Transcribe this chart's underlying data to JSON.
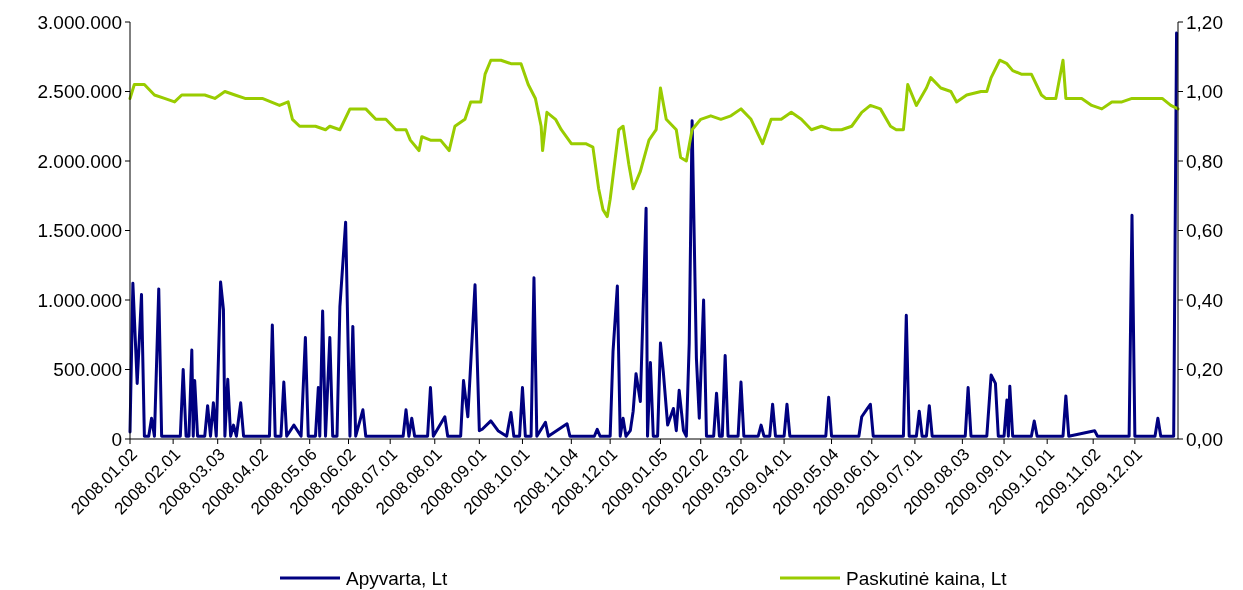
{
  "chart_data": {
    "type": "line",
    "legend": "bottom",
    "grid": false,
    "marker": "none",
    "line_style": "solid",
    "xlim": [
      "2008-01-02",
      "2009-12-31"
    ],
    "xticks": [
      {
        "value": "2008-01-02",
        "label": "2008.01.02"
      },
      {
        "value": "2008-02-01",
        "label": "2008.02.01"
      },
      {
        "value": "2008-03-03",
        "label": "2008.03.03"
      },
      {
        "value": "2008-04-02",
        "label": "2008.04.02"
      },
      {
        "value": "2008-05-06",
        "label": "2008.05.06"
      },
      {
        "value": "2008-06-02",
        "label": "2008.06.02"
      },
      {
        "value": "2008-07-01",
        "label": "2008.07.01"
      },
      {
        "value": "2008-08-01",
        "label": "2008.08.01"
      },
      {
        "value": "2008-09-01",
        "label": "2008.09.01"
      },
      {
        "value": "2008-10-01",
        "label": "2008.10.01"
      },
      {
        "value": "2008-11-04",
        "label": "2008.11.04"
      },
      {
        "value": "2008-12-01",
        "label": "2008.12.01"
      },
      {
        "value": "2009-01-05",
        "label": "2009.01.05"
      },
      {
        "value": "2009-02-02",
        "label": "2009.02.02"
      },
      {
        "value": "2009-03-02",
        "label": "2009.03.02"
      },
      {
        "value": "2009-04-01",
        "label": "2009.04.01"
      },
      {
        "value": "2009-05-04",
        "label": "2009.05.04"
      },
      {
        "value": "2009-06-01",
        "label": "2009.06.01"
      },
      {
        "value": "2009-07-01",
        "label": "2009.07.01"
      },
      {
        "value": "2009-08-03",
        "label": "2009.08.03"
      },
      {
        "value": "2009-09-01",
        "label": "2009.09.01"
      },
      {
        "value": "2009-10-01",
        "label": "2009.10.01"
      },
      {
        "value": "2009-11-02",
        "label": "2009.11.02"
      },
      {
        "value": "2009-12-01",
        "label": "2009.12.01"
      }
    ],
    "ylim": [
      0,
      3000000
    ],
    "yticks": [
      {
        "value": 0,
        "label": "0"
      },
      {
        "value": 500000,
        "label": "500.000"
      },
      {
        "value": 1000000,
        "label": "1.000.000"
      },
      {
        "value": 1500000,
        "label": "1.500.000"
      },
      {
        "value": 2000000,
        "label": "2.000.000"
      },
      {
        "value": 2500000,
        "label": "2.500.000"
      },
      {
        "value": 3000000,
        "label": "3.000.000"
      }
    ],
    "y2lim": [
      0,
      1.2
    ],
    "y2ticks": [
      {
        "value": 0,
        "label": "0,00"
      },
      {
        "value": 0.2,
        "label": "0,20"
      },
      {
        "value": 0.4,
        "label": "0,40"
      },
      {
        "value": 0.6,
        "label": "0,60"
      },
      {
        "value": 0.8,
        "label": "0,80"
      },
      {
        "value": 1,
        "label": "1,00"
      },
      {
        "value": 1.2,
        "label": "1,20"
      }
    ],
    "series": [
      {
        "name": "Apyvarta, Lt",
        "color": "#000080",
        "x": [
          "2008-01-02",
          "2008-01-04",
          "2008-01-07",
          "2008-01-10",
          "2008-01-12",
          "2008-01-15",
          "2008-01-17",
          "2008-01-19",
          "2008-01-22",
          "2008-01-24",
          "2008-02-06",
          "2008-02-08",
          "2008-02-10",
          "2008-02-12",
          "2008-02-14",
          "2008-02-15",
          "2008-02-16",
          "2008-02-18",
          "2008-02-23",
          "2008-02-25",
          "2008-02-27",
          "2008-02-29",
          "2008-03-02",
          "2008-03-05",
          "2008-03-07",
          "2008-03-08",
          "2008-03-10",
          "2008-03-12",
          "2008-03-14",
          "2008-03-16",
          "2008-03-19",
          "2008-03-21",
          "2008-04-08",
          "2008-04-10",
          "2008-04-12",
          "2008-04-16",
          "2008-04-18",
          "2008-04-20",
          "2008-04-25",
          "2008-04-30",
          "2008-05-03",
          "2008-05-05",
          "2008-05-10",
          "2008-05-12",
          "2008-05-13",
          "2008-05-15",
          "2008-05-17",
          "2008-05-20",
          "2008-05-22",
          "2008-05-25",
          "2008-05-27",
          "2008-05-31",
          "2008-06-03",
          "2008-06-05",
          "2008-06-07",
          "2008-06-12",
          "2008-06-14",
          "2008-07-10",
          "2008-07-12",
          "2008-07-14",
          "2008-07-16",
          "2008-07-18",
          "2008-07-27",
          "2008-07-29",
          "2008-07-31",
          "2008-08-08",
          "2008-08-10",
          "2008-08-19",
          "2008-08-21",
          "2008-08-24",
          "2008-08-29",
          "2008-09-01",
          "2008-09-03",
          "2008-09-09",
          "2008-09-14",
          "2008-09-20",
          "2008-09-23",
          "2008-09-25",
          "2008-09-29",
          "2008-10-01",
          "2008-10-03",
          "2008-10-07",
          "2008-10-09",
          "2008-10-11",
          "2008-10-17",
          "2008-10-19",
          "2008-11-01",
          "2008-11-03",
          "2008-11-20",
          "2008-11-22",
          "2008-11-24",
          "2008-12-01",
          "2008-12-03",
          "2008-12-06",
          "2008-12-08",
          "2008-12-10",
          "2008-12-12",
          "2008-12-15",
          "2008-12-17",
          "2008-12-19",
          "2008-12-22",
          "2008-12-26",
          "2008-12-27",
          "2008-12-29",
          "2008-12-31",
          "2009-01-03",
          "2009-01-05",
          "2009-01-07",
          "2009-01-10",
          "2009-01-14",
          "2009-01-16",
          "2009-01-18",
          "2009-01-21",
          "2009-01-23",
          "2009-01-25",
          "2009-01-27",
          "2009-01-30",
          "2009-02-01",
          "2009-02-04",
          "2009-02-06",
          "2009-02-11",
          "2009-02-13",
          "2009-02-15",
          "2009-02-17",
          "2009-02-19",
          "2009-02-21",
          "2009-02-28",
          "2009-03-02",
          "2009-03-04",
          "2009-03-14",
          "2009-03-16",
          "2009-03-18",
          "2009-03-22",
          "2009-03-24",
          "2009-03-26",
          "2009-04-01",
          "2009-04-03",
          "2009-04-05",
          "2009-04-30",
          "2009-05-02",
          "2009-05-04",
          "2009-05-23",
          "2009-05-25",
          "2009-05-29",
          "2009-05-31",
          "2009-06-02",
          "2009-06-23",
          "2009-06-25",
          "2009-06-27",
          "2009-07-02",
          "2009-07-04",
          "2009-07-06",
          "2009-07-09",
          "2009-07-11",
          "2009-07-13",
          "2009-08-05",
          "2009-08-07",
          "2009-08-09",
          "2009-08-20",
          "2009-08-23",
          "2009-08-26",
          "2009-08-28",
          "2009-09-01",
          "2009-09-03",
          "2009-09-04",
          "2009-09-05",
          "2009-09-07",
          "2009-09-20",
          "2009-09-22",
          "2009-09-24",
          "2009-10-12",
          "2009-10-14",
          "2009-10-16",
          "2009-11-03",
          "2009-11-05",
          "2009-11-27",
          "2009-11-29",
          "2009-12-01",
          "2009-12-15",
          "2009-12-17",
          "2009-12-19",
          "2009-12-28",
          "2009-12-30"
        ],
        "values": [
          50000,
          1120000,
          400000,
          1040000,
          20000,
          20000,
          150000,
          20000,
          1080000,
          20000,
          20000,
          500000,
          20000,
          20000,
          640000,
          20000,
          420000,
          20000,
          20000,
          240000,
          20000,
          260000,
          20000,
          1130000,
          930000,
          20000,
          430000,
          20000,
          100000,
          20000,
          260000,
          20000,
          20000,
          820000,
          20000,
          20000,
          410000,
          20000,
          100000,
          20000,
          730000,
          20000,
          20000,
          370000,
          20000,
          920000,
          20000,
          730000,
          20000,
          20000,
          950000,
          1560000,
          20000,
          810000,
          20000,
          210000,
          20000,
          20000,
          210000,
          20000,
          150000,
          20000,
          20000,
          370000,
          20000,
          160000,
          20000,
          20000,
          420000,
          160000,
          1110000,
          60000,
          70000,
          130000,
          60000,
          20000,
          190000,
          20000,
          20000,
          370000,
          20000,
          20000,
          1160000,
          20000,
          120000,
          20000,
          110000,
          20000,
          20000,
          70000,
          20000,
          20000,
          630000,
          1100000,
          20000,
          150000,
          20000,
          60000,
          200000,
          470000,
          270000,
          1660000,
          20000,
          550000,
          20000,
          20000,
          690000,
          480000,
          100000,
          220000,
          60000,
          350000,
          60000,
          20000,
          690000,
          2290000,
          580000,
          150000,
          1000000,
          20000,
          20000,
          330000,
          20000,
          20000,
          600000,
          20000,
          20000,
          410000,
          20000,
          20000,
          100000,
          20000,
          20000,
          250000,
          20000,
          20000,
          250000,
          20000,
          20000,
          300000,
          20000,
          20000,
          160000,
          220000,
          250000,
          20000,
          20000,
          890000,
          20000,
          20000,
          200000,
          20000,
          20000,
          240000,
          20000,
          20000,
          370000,
          20000,
          20000,
          460000,
          400000,
          20000,
          20000,
          280000,
          20000,
          380000,
          20000,
          20000,
          130000,
          20000,
          20000,
          310000,
          20000,
          60000,
          20000,
          20000,
          1610000,
          20000,
          20000,
          150000,
          20000,
          20000,
          2920000
        ]
      },
      {
        "name": "Paskutinė kaina, Lt",
        "color": "#99cc00",
        "axis": "y2",
        "x": [
          "2008-01-02",
          "2008-01-05",
          "2008-01-12",
          "2008-01-19",
          "2008-01-26",
          "2008-02-02",
          "2008-02-07",
          "2008-02-13",
          "2008-02-23",
          "2008-03-01",
          "2008-03-08",
          "2008-03-15",
          "2008-03-22",
          "2008-03-29",
          "2008-04-03",
          "2008-04-09",
          "2008-04-15",
          "2008-04-21",
          "2008-04-24",
          "2008-04-29",
          "2008-05-10",
          "2008-05-17",
          "2008-05-20",
          "2008-05-27",
          "2008-06-03",
          "2008-06-14",
          "2008-06-21",
          "2008-06-28",
          "2008-07-05",
          "2008-07-12",
          "2008-07-15",
          "2008-07-21",
          "2008-07-23",
          "2008-07-29",
          "2008-08-05",
          "2008-08-11",
          "2008-08-15",
          "2008-08-22",
          "2008-08-26",
          "2008-09-02",
          "2008-09-05",
          "2008-09-09",
          "2008-09-16",
          "2008-09-23",
          "2008-09-30",
          "2008-10-05",
          "2008-10-10",
          "2008-10-14",
          "2008-10-15",
          "2008-10-18",
          "2008-10-24",
          "2008-10-28",
          "2008-11-04",
          "2008-11-14",
          "2008-11-19",
          "2008-11-23",
          "2008-11-26",
          "2008-11-29",
          "2008-12-01",
          "2008-12-07",
          "2008-12-10",
          "2008-12-14",
          "2008-12-17",
          "2008-12-22",
          "2008-12-28",
          "2009-01-02",
          "2009-01-05",
          "2009-01-09",
          "2009-01-16",
          "2009-01-19",
          "2009-01-23",
          "2009-01-27",
          "2009-02-02",
          "2009-02-09",
          "2009-02-16",
          "2009-02-23",
          "2009-03-02",
          "2009-03-09",
          "2009-03-17",
          "2009-03-23",
          "2009-03-30",
          "2009-04-06",
          "2009-04-13",
          "2009-04-20",
          "2009-04-27",
          "2009-05-04",
          "2009-05-11",
          "2009-05-18",
          "2009-05-25",
          "2009-05-31",
          "2009-06-07",
          "2009-06-14",
          "2009-06-18",
          "2009-06-23",
          "2009-06-26",
          "2009-07-02",
          "2009-07-09",
          "2009-07-12",
          "2009-07-19",
          "2009-07-26",
          "2009-07-30",
          "2009-08-06",
          "2009-08-16",
          "2009-08-20",
          "2009-08-23",
          "2009-08-29",
          "2009-09-03",
          "2009-09-07",
          "2009-09-13",
          "2009-09-20",
          "2009-09-27",
          "2009-09-30",
          "2009-10-07",
          "2009-10-12",
          "2009-10-14",
          "2009-10-25",
          "2009-11-01",
          "2009-11-08",
          "2009-11-15",
          "2009-11-22",
          "2009-11-29",
          "2009-12-06",
          "2009-12-13",
          "2009-12-20",
          "2009-12-26",
          "2009-12-31"
        ],
        "values": [
          0.98,
          1.02,
          1.02,
          0.99,
          0.98,
          0.97,
          0.99,
          0.99,
          0.99,
          0.98,
          1.0,
          0.99,
          0.98,
          0.98,
          0.98,
          0.97,
          0.96,
          0.97,
          0.92,
          0.9,
          0.9,
          0.89,
          0.9,
          0.89,
          0.95,
          0.95,
          0.92,
          0.92,
          0.89,
          0.89,
          0.86,
          0.83,
          0.87,
          0.86,
          0.86,
          0.83,
          0.9,
          0.92,
          0.97,
          0.97,
          1.05,
          1.09,
          1.09,
          1.08,
          1.08,
          1.02,
          0.98,
          0.9,
          0.83,
          0.94,
          0.92,
          0.89,
          0.85,
          0.85,
          0.84,
          0.72,
          0.66,
          0.64,
          0.69,
          0.89,
          0.9,
          0.79,
          0.72,
          0.77,
          0.86,
          0.89,
          1.01,
          0.92,
          0.89,
          0.81,
          0.8,
          0.89,
          0.92,
          0.93,
          0.92,
          0.93,
          0.95,
          0.92,
          0.85,
          0.92,
          0.92,
          0.94,
          0.92,
          0.89,
          0.9,
          0.89,
          0.89,
          0.9,
          0.94,
          0.96,
          0.95,
          0.9,
          0.89,
          0.89,
          1.02,
          0.96,
          1.01,
          1.04,
          1.01,
          1.0,
          0.97,
          0.99,
          1.0,
          1.0,
          1.04,
          1.09,
          1.08,
          1.06,
          1.05,
          1.05,
          0.99,
          0.98,
          0.98,
          1.09,
          0.98,
          0.98,
          0.96,
          0.95,
          0.97,
          0.97,
          0.98,
          0.98,
          0.98,
          0.98,
          0.96,
          0.95
        ]
      }
    ]
  }
}
